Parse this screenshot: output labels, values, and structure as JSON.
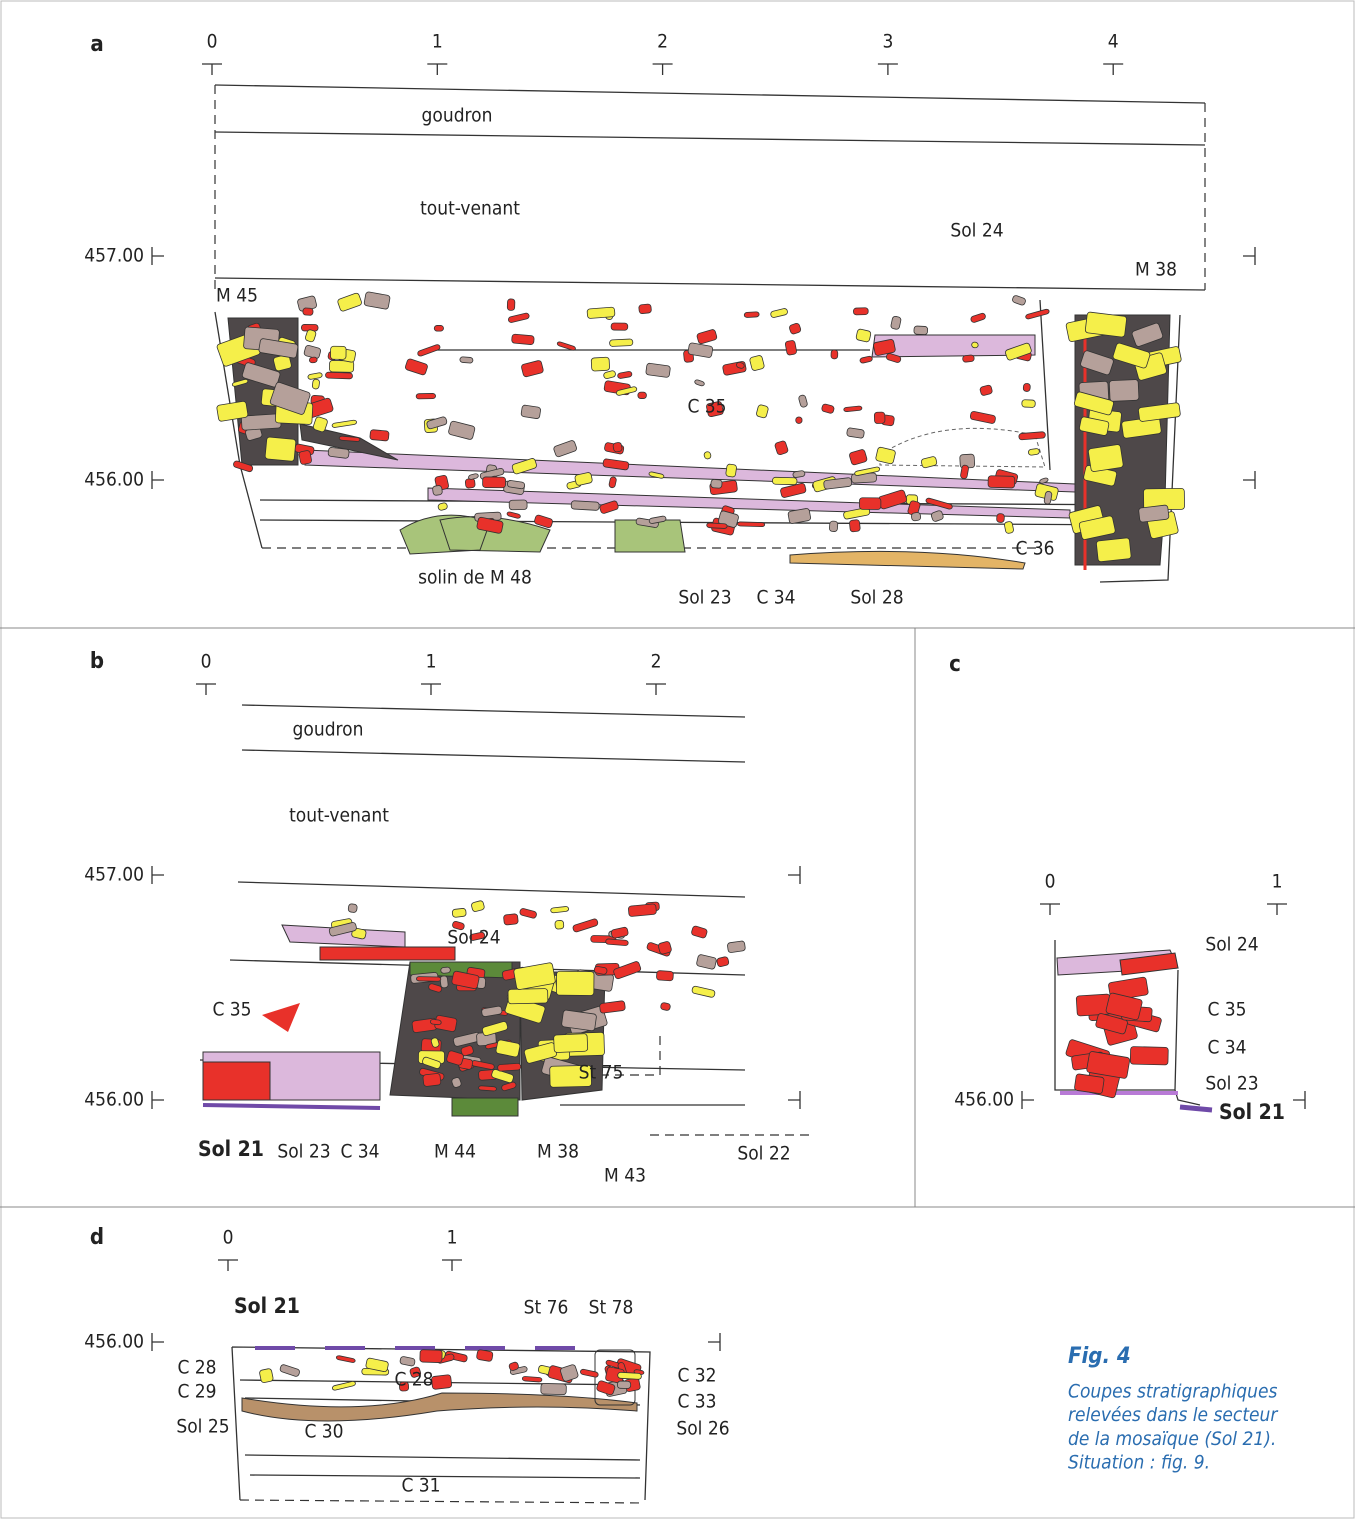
{
  "panels": [
    {
      "letter": "a",
      "scale": [
        "0",
        "1",
        "2",
        "3",
        "4"
      ],
      "elevations": [
        "457.00",
        "456.00"
      ],
      "labels": [
        "goudron",
        "tout-venant",
        "Sol 24",
        "M 38",
        "M 45",
        "C 35",
        "C 36",
        "solin de M 48",
        "Sol 23",
        "C 34",
        "Sol 28"
      ]
    },
    {
      "letter": "b",
      "scale": [
        "0",
        "1",
        "2"
      ],
      "elevations": [
        "457.00",
        "456.00"
      ],
      "labels": [
        "goudron",
        "tout-venant",
        "Sol 24",
        "C 35",
        "St 75",
        "Sol 21",
        "Sol 23",
        "C 34",
        "M 44",
        "M 38",
        "M 43",
        "Sol 22"
      ]
    },
    {
      "letter": "c",
      "scale": [
        "0",
        "1"
      ],
      "elevations": [
        "456.00"
      ],
      "labels": [
        "Sol 24",
        "C 35",
        "C 34",
        "Sol 23",
        "Sol 21"
      ]
    },
    {
      "letter": "d",
      "scale": [
        "0",
        "1"
      ],
      "elevations": [
        "456.00"
      ],
      "labels": [
        "Sol 21",
        "St 76",
        "St 78",
        "C 28",
        "C 28",
        "C 29",
        "C 32",
        "C 33",
        "Sol 25",
        "C 30",
        "Sol 26",
        "C 31"
      ]
    }
  ],
  "caption": {
    "title": "Fig. 4",
    "lines": [
      "Coupes stratigraphiques",
      "relevées dans le secteur",
      "de la mosaïque (Sol 21).",
      "Situation : fig. 9."
    ]
  }
}
